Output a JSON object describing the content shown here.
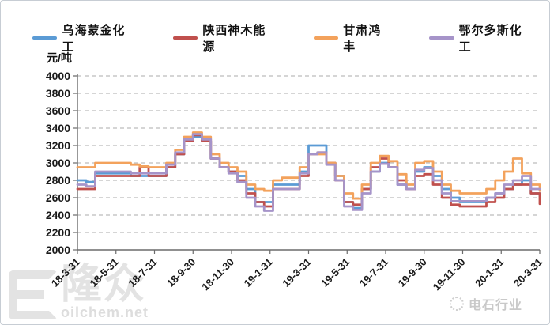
{
  "unit_label": "元/吨",
  "watermarks": {
    "left_logo_text": "隆众",
    "left_logo_sub": "oilchem.net",
    "right_text": "电石行业"
  },
  "chart_data": {
    "type": "line",
    "step": true,
    "title": "",
    "ylabel": "元/吨",
    "ylim": [
      2000,
      4000
    ],
    "ytick_step": 200,
    "y_tick_labels": [
      "4000",
      "3800",
      "3600",
      "3400",
      "3200",
      "3000",
      "2800",
      "2600",
      "2400",
      "2200",
      "2000"
    ],
    "x_tick_labels": [
      "18-3-31",
      "18-5-31",
      "18-7-31",
      "18-9-30",
      "18-11-30",
      "19-1-31",
      "19-3-31",
      "19-5-31",
      "19-7-31",
      "19-9-30",
      "19-11-30",
      "20-1-31",
      "20-3-31"
    ],
    "grid": "dashed-horizontal",
    "legend_position": "top",
    "series": [
      {
        "name": "乌海蒙金化工",
        "color": "#5B9BD5",
        "values": [
          2800,
          2780,
          2880,
          2880,
          2880,
          2880,
          2850,
          2850,
          2850,
          2850,
          2950,
          3100,
          3250,
          3300,
          3250,
          3050,
          2950,
          2900,
          2850,
          2700,
          2550,
          2550,
          2750,
          2750,
          2750,
          2900,
          3200,
          3200,
          3000,
          2850,
          2550,
          2480,
          2700,
          2900,
          3000,
          2950,
          2750,
          2700,
          2900,
          2950,
          2850,
          2700,
          2600,
          2550,
          2550,
          2550,
          2600,
          2650,
          2700,
          2750,
          2800,
          2650,
          2620
        ]
      },
      {
        "name": "陕西神木能源",
        "color": "#C0504D",
        "values": [
          2700,
          2700,
          2850,
          2850,
          2850,
          2850,
          2850,
          2950,
          2850,
          2850,
          2950,
          3100,
          3250,
          3320,
          3250,
          3050,
          2950,
          2900,
          2800,
          2650,
          2550,
          2500,
          2700,
          2700,
          2700,
          2850,
          3100,
          3120,
          3000,
          2800,
          2550,
          2520,
          2700,
          2950,
          3050,
          2950,
          2800,
          2700,
          2850,
          2870,
          2750,
          2600,
          2520,
          2500,
          2500,
          2500,
          2550,
          2600,
          2700,
          2750,
          2750,
          2650,
          2530
        ]
      },
      {
        "name": "甘肃鸿丰",
        "color": "#F3A25C",
        "values": [
          2950,
          2950,
          3000,
          3000,
          3000,
          3000,
          2980,
          2960,
          2950,
          2950,
          3000,
          3150,
          3300,
          3350,
          3300,
          3100,
          3000,
          2950,
          2900,
          2750,
          2700,
          2680,
          2800,
          2830,
          2830,
          2950,
          3100,
          3100,
          3000,
          2850,
          2650,
          2590,
          2750,
          3000,
          3080,
          3020,
          2870,
          2750,
          3000,
          3020,
          2900,
          2750,
          2680,
          2650,
          2650,
          2650,
          2700,
          2800,
          2900,
          3050,
          2880,
          2750,
          2680
        ]
      },
      {
        "name": "鄂尔多斯化工",
        "color": "#A694C9",
        "values": [
          2750,
          2730,
          2900,
          2900,
          2900,
          2900,
          2880,
          2880,
          2880,
          2880,
          2980,
          3120,
          3270,
          3330,
          3270,
          3050,
          2950,
          2880,
          2780,
          2600,
          2500,
          2450,
          2700,
          2700,
          2700,
          2880,
          3100,
          3120,
          2980,
          2800,
          2500,
          2460,
          2650,
          2900,
          2990,
          2950,
          2750,
          2700,
          2920,
          2940,
          2800,
          2650,
          2560,
          2560,
          2560,
          2560,
          2600,
          2650,
          2750,
          2800,
          2850,
          2700,
          2700
        ]
      }
    ]
  }
}
